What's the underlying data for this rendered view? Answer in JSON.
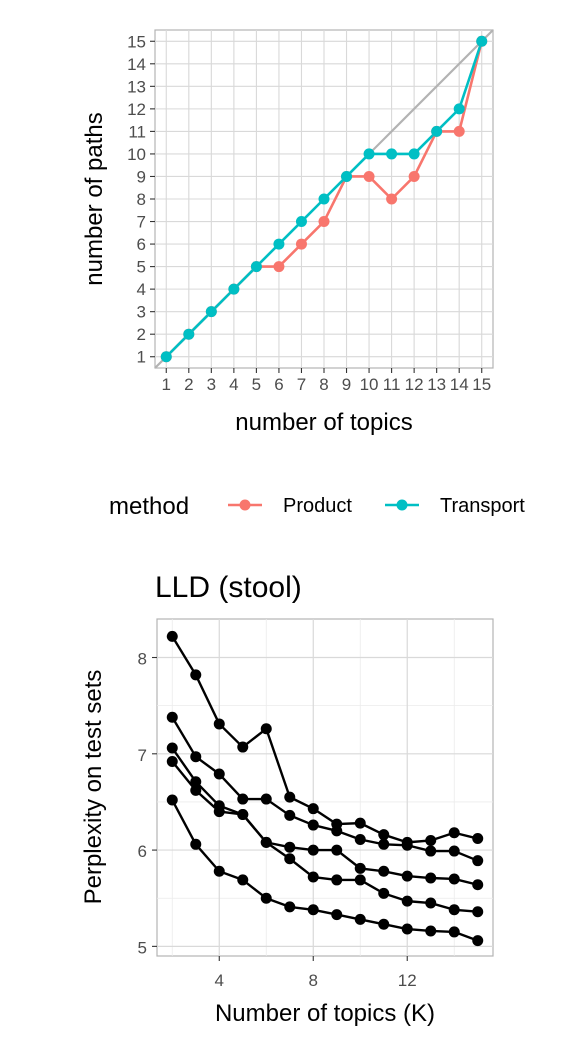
{
  "legend": {
    "title": "method",
    "items": [
      {
        "label": "Product",
        "color": "#F8766D"
      },
      {
        "label": "Transport",
        "color": "#00BFC4"
      }
    ]
  },
  "chart_data": [
    {
      "type": "line",
      "title": "",
      "xlabel": "number of topics",
      "ylabel": "number of paths",
      "xlim": [
        0.5,
        15.5
      ],
      "ylim": [
        0.5,
        15.5
      ],
      "x": [
        1,
        2,
        3,
        4,
        5,
        6,
        7,
        8,
        9,
        10,
        11,
        12,
        13,
        14,
        15
      ],
      "xticks": [
        "1",
        "2",
        "3",
        "4",
        "5",
        "6",
        "7",
        "8",
        "9",
        "10",
        "11",
        "12",
        "13",
        "14",
        "15"
      ],
      "yticks": [
        "1",
        "2",
        "3",
        "4",
        "5",
        "6",
        "7",
        "8",
        "9",
        "10",
        "11",
        "12",
        "13",
        "14",
        "15"
      ],
      "grid": true,
      "reference_line": "y = x",
      "legend_position": "bottom",
      "series": [
        {
          "name": "Product",
          "color": "#F8766D",
          "values": [
            1,
            2,
            3,
            4,
            5,
            5,
            6,
            7,
            9,
            9,
            8,
            9,
            11,
            11,
            15
          ]
        },
        {
          "name": "Transport",
          "color": "#00BFC4",
          "values": [
            1,
            2,
            3,
            4,
            5,
            6,
            7,
            8,
            9,
            10,
            10,
            10,
            11,
            12,
            15
          ]
        }
      ]
    },
    {
      "type": "line",
      "title": "LLD (stool)",
      "xlabel": "Number of topics (K)",
      "ylabel": "Perplexity on test sets",
      "xlim": [
        1.35,
        15.65
      ],
      "ylim": [
        4.9,
        8.4
      ],
      "x": [
        2,
        3,
        4,
        5,
        6,
        7,
        8,
        9,
        10,
        11,
        12,
        13,
        14,
        15
      ],
      "xticks": [
        4,
        8,
        12
      ],
      "yticks": [
        5,
        6,
        7,
        8
      ],
      "grid": true,
      "color": "#000000",
      "series": [
        {
          "values": [
            8.22,
            7.82,
            7.31,
            7.07,
            7.26,
            6.55,
            6.43,
            6.27,
            6.28,
            6.16,
            6.08,
            6.1,
            6.18,
            6.12
          ]
        },
        {
          "values": [
            7.38,
            6.97,
            6.79,
            6.53,
            6.53,
            6.36,
            6.26,
            6.2,
            6.11,
            6.06,
            6.05,
            5.99,
            5.99,
            5.89
          ]
        },
        {
          "values": [
            7.06,
            6.71,
            6.46,
            6.37,
            6.08,
            6.03,
            6.0,
            6.0,
            5.81,
            5.78,
            5.73,
            5.71,
            5.7,
            5.64
          ]
        },
        {
          "values": [
            6.92,
            6.62,
            6.4,
            6.37,
            6.08,
            5.91,
            5.72,
            5.69,
            5.69,
            5.55,
            5.47,
            5.45,
            5.38,
            5.36
          ]
        },
        {
          "values": [
            6.52,
            6.06,
            5.78,
            5.69,
            5.5,
            5.41,
            5.38,
            5.33,
            5.28,
            5.23,
            5.18,
            5.16,
            5.15,
            5.06
          ]
        }
      ]
    }
  ]
}
